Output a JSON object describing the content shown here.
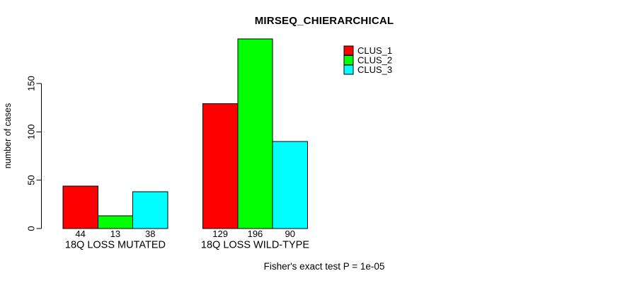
{
  "header": {
    "title": "MIRSEQ_CHIERARCHICAL"
  },
  "footer": {
    "note": "Fisher's exact test P = 1e-05"
  },
  "chart_data": {
    "type": "bar",
    "title": "MIRSEQ_CHIERARCHICAL",
    "xlabel": "",
    "ylabel": "number of cases",
    "categories": [
      "18Q LOSS MUTATED",
      "18Q LOSS WILD-TYPE"
    ],
    "series": [
      {
        "name": "CLUS_1",
        "color": "#ff0000",
        "values": [
          44,
          129
        ]
      },
      {
        "name": "CLUS_2",
        "color": "#00ff00",
        "values": [
          13,
          196
        ]
      },
      {
        "name": "CLUS_3",
        "color": "#00ffff",
        "values": [
          38,
          90
        ]
      }
    ],
    "value_labels_shown": true,
    "yticks": [
      0,
      50,
      100,
      150
    ],
    "ylim": [
      0,
      196
    ],
    "grid": false,
    "legend_position": "top-right",
    "bar_border_color": "#000000",
    "axis_color": "#000000",
    "annotation": "Fisher's exact test P = 1e-05"
  }
}
